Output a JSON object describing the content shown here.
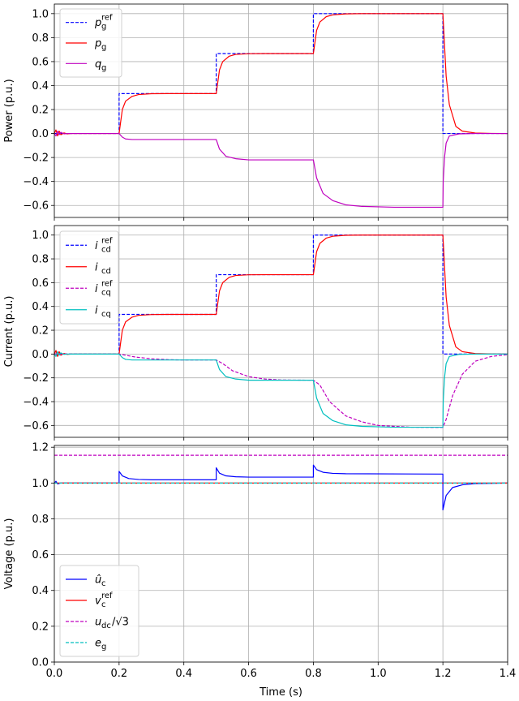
{
  "chart_data": [
    {
      "type": "line",
      "ylabel": "Power (p.u.)",
      "xlim": [
        0,
        1.4
      ],
      "ylim": [
        -0.7,
        1.08
      ],
      "x_ticks": [
        "0.0",
        "0.2",
        "0.4",
        "0.6",
        "0.8",
        "1.0",
        "1.2",
        "1.4"
      ],
      "y_ticks": [
        "−0.6",
        "−0.4",
        "−0.2",
        "0.0",
        "0.2",
        "0.4",
        "0.6",
        "0.8",
        "1.0"
      ],
      "y_tick_values": [
        -0.6,
        -0.4,
        -0.2,
        0.0,
        0.2,
        0.4,
        0.6,
        0.8,
        1.0
      ],
      "grid": true,
      "legend_position": "upper-left",
      "series": [
        {
          "name": "p_g^ref",
          "legend_main": "p",
          "legend_sub": "g",
          "legend_sup": "ref",
          "color": "#0000ff",
          "dash": "dashed",
          "x": [
            0,
            0.2,
            0.2,
            0.5,
            0.5,
            0.8,
            0.8,
            1.2,
            1.2,
            1.4
          ],
          "y": [
            0,
            0,
            0.333,
            0.333,
            0.667,
            0.667,
            1.0,
            1.0,
            0,
            0
          ]
        },
        {
          "name": "p_g",
          "legend_main": "p",
          "legend_sub": "g",
          "legend_sup": "",
          "color": "#ff0000",
          "dash": "solid",
          "x": [
            0,
            0.005,
            0.01,
            0.015,
            0.02,
            0.03,
            0.04,
            0.05,
            0.2,
            0.21,
            0.22,
            0.24,
            0.26,
            0.3,
            0.35,
            0.5,
            0.51,
            0.52,
            0.54,
            0.56,
            0.6,
            0.65,
            0.8,
            0.81,
            0.82,
            0.84,
            0.86,
            0.9,
            0.95,
            1.2,
            1.21,
            1.22,
            1.24,
            1.26,
            1.3,
            1.35,
            1.4
          ],
          "y": [
            0,
            0.03,
            -0.02,
            0.02,
            -0.01,
            0.005,
            -0.003,
            0,
            0,
            0.2,
            0.27,
            0.31,
            0.325,
            0.332,
            0.333,
            0.333,
            0.53,
            0.6,
            0.645,
            0.66,
            0.666,
            0.667,
            0.667,
            0.86,
            0.93,
            0.975,
            0.99,
            0.998,
            1.0,
            1.0,
            0.48,
            0.24,
            0.06,
            0.02,
            0.004,
            0.001,
            0
          ]
        },
        {
          "name": "q_g",
          "legend_main": "q",
          "legend_sub": "g",
          "legend_sup": "",
          "color": "#bf00bf",
          "dash": "solid",
          "x": [
            0,
            0.005,
            0.01,
            0.015,
            0.02,
            0.03,
            0.04,
            0.2,
            0.21,
            0.22,
            0.24,
            0.3,
            0.5,
            0.51,
            0.53,
            0.56,
            0.6,
            0.65,
            0.8,
            0.81,
            0.83,
            0.86,
            0.9,
            0.95,
            1.05,
            1.2,
            1.201,
            1.205,
            1.21,
            1.22,
            1.25,
            1.3,
            1.4
          ],
          "y": [
            0,
            -0.02,
            0.02,
            -0.01,
            0.01,
            -0.003,
            0,
            0,
            -0.03,
            -0.045,
            -0.05,
            -0.05,
            -0.05,
            -0.13,
            -0.19,
            -0.21,
            -0.22,
            -0.22,
            -0.22,
            -0.37,
            -0.5,
            -0.56,
            -0.595,
            -0.608,
            -0.615,
            -0.615,
            -0.4,
            -0.2,
            -0.08,
            -0.02,
            -0.003,
            0,
            0
          ]
        }
      ]
    },
    {
      "type": "line",
      "ylabel": "Current (p.u.)",
      "xlim": [
        0,
        1.4
      ],
      "ylim": [
        -0.7,
        1.08
      ],
      "x_ticks": [
        "0.0",
        "0.2",
        "0.4",
        "0.6",
        "0.8",
        "1.0",
        "1.2",
        "1.4"
      ],
      "y_ticks": [
        "−0.6",
        "−0.4",
        "−0.2",
        "0.0",
        "0.2",
        "0.4",
        "0.6",
        "0.8",
        "1.0"
      ],
      "y_tick_values": [
        -0.6,
        -0.4,
        -0.2,
        0.0,
        0.2,
        0.4,
        0.6,
        0.8,
        1.0
      ],
      "grid": true,
      "legend_position": "upper-left",
      "series": [
        {
          "name": "i_cd^ref",
          "legend_main": "i",
          "legend_sub": "cd",
          "legend_sup": "ref",
          "color": "#0000ff",
          "dash": "dashed",
          "x": [
            0,
            0.2,
            0.2,
            0.5,
            0.5,
            0.8,
            0.8,
            1.2,
            1.2,
            1.4
          ],
          "y": [
            0,
            0,
            0.333,
            0.333,
            0.667,
            0.667,
            1.0,
            1.0,
            0,
            0
          ]
        },
        {
          "name": "i_cd",
          "legend_main": "i",
          "legend_sub": "cd",
          "legend_sup": "",
          "color": "#ff0000",
          "dash": "solid",
          "x": [
            0,
            0.005,
            0.01,
            0.015,
            0.02,
            0.03,
            0.04,
            0.05,
            0.2,
            0.21,
            0.22,
            0.24,
            0.26,
            0.3,
            0.35,
            0.5,
            0.51,
            0.52,
            0.54,
            0.56,
            0.6,
            0.65,
            0.8,
            0.81,
            0.82,
            0.84,
            0.86,
            0.9,
            0.95,
            1.2,
            1.21,
            1.22,
            1.24,
            1.26,
            1.3,
            1.35,
            1.4
          ],
          "y": [
            0,
            0.03,
            -0.02,
            0.02,
            -0.01,
            0.005,
            -0.003,
            0,
            0,
            0.2,
            0.27,
            0.31,
            0.325,
            0.332,
            0.333,
            0.333,
            0.53,
            0.6,
            0.645,
            0.66,
            0.666,
            0.667,
            0.667,
            0.86,
            0.93,
            0.975,
            0.99,
            0.998,
            1.0,
            1.0,
            0.48,
            0.24,
            0.06,
            0.02,
            0.004,
            0.001,
            0
          ]
        },
        {
          "name": "i_cq^ref",
          "legend_main": "i",
          "legend_sub": "cq",
          "legend_sup": "ref",
          "color": "#bf00bf",
          "dash": "dashed",
          "x": [
            0,
            0.2,
            0.22,
            0.25,
            0.3,
            0.35,
            0.4,
            0.5,
            0.52,
            0.55,
            0.6,
            0.65,
            0.7,
            0.8,
            0.82,
            0.85,
            0.9,
            0.95,
            1.0,
            1.1,
            1.2,
            1.21,
            1.23,
            1.26,
            1.3,
            1.35,
            1.4
          ],
          "y": [
            0,
            0,
            -0.01,
            -0.025,
            -0.04,
            -0.047,
            -0.05,
            -0.05,
            -0.08,
            -0.14,
            -0.19,
            -0.21,
            -0.218,
            -0.22,
            -0.26,
            -0.4,
            -0.52,
            -0.57,
            -0.6,
            -0.615,
            -0.617,
            -0.55,
            -0.35,
            -0.17,
            -0.06,
            -0.02,
            -0.005
          ]
        },
        {
          "name": "i_cq",
          "legend_main": "i",
          "legend_sub": "cq",
          "legend_sup": "",
          "color": "#00bfbf",
          "dash": "solid",
          "x": [
            0,
            0.005,
            0.01,
            0.015,
            0.02,
            0.03,
            0.04,
            0.2,
            0.21,
            0.22,
            0.24,
            0.3,
            0.5,
            0.51,
            0.53,
            0.56,
            0.6,
            0.65,
            0.8,
            0.81,
            0.83,
            0.86,
            0.9,
            0.95,
            1.05,
            1.2,
            1.201,
            1.205,
            1.21,
            1.22,
            1.25,
            1.3,
            1.4
          ],
          "y": [
            0,
            -0.02,
            0.02,
            -0.01,
            0.01,
            -0.003,
            0,
            0,
            -0.03,
            -0.045,
            -0.05,
            -0.05,
            -0.05,
            -0.13,
            -0.19,
            -0.21,
            -0.22,
            -0.22,
            -0.22,
            -0.37,
            -0.5,
            -0.56,
            -0.595,
            -0.608,
            -0.615,
            -0.615,
            -0.4,
            -0.2,
            -0.08,
            -0.02,
            -0.003,
            0,
            0
          ]
        }
      ]
    },
    {
      "type": "line",
      "xlabel": "Time (s)",
      "ylabel": "Voltage (p.u.)",
      "xlim": [
        0,
        1.4
      ],
      "ylim": [
        0,
        1.21
      ],
      "x_ticks": [
        "0.0",
        "0.2",
        "0.4",
        "0.6",
        "0.8",
        "1.0",
        "1.2",
        "1.4"
      ],
      "y_ticks": [
        "0.0",
        "0.2",
        "0.4",
        "0.6",
        "0.8",
        "1.0",
        "1.2"
      ],
      "y_tick_values": [
        0.0,
        0.2,
        0.4,
        0.6,
        0.8,
        1.0,
        1.2
      ],
      "grid": true,
      "legend_position": "lower-left",
      "series": [
        {
          "name": "û_c",
          "legend_main": "û",
          "legend_sub": "c",
          "legend_sup": "",
          "color": "#0000ff",
          "dash": "solid",
          "x": [
            0,
            0.005,
            0.01,
            0.02,
            0.2,
            0.2,
            0.21,
            0.23,
            0.26,
            0.3,
            0.5,
            0.5,
            0.51,
            0.53,
            0.56,
            0.6,
            0.8,
            0.8,
            0.81,
            0.83,
            0.86,
            0.9,
            1.2,
            1.2,
            1.21,
            1.23,
            1.26,
            1.3,
            1.4
          ],
          "y": [
            1.0,
            1.01,
            0.995,
            1.0,
            1.0,
            1.065,
            1.04,
            1.025,
            1.02,
            1.018,
            1.018,
            1.085,
            1.055,
            1.04,
            1.035,
            1.033,
            1.033,
            1.1,
            1.075,
            1.06,
            1.054,
            1.052,
            1.05,
            0.85,
            0.93,
            0.975,
            0.99,
            0.997,
            1.0
          ]
        },
        {
          "name": "v_c^ref",
          "legend_main": "v",
          "legend_sub": "c",
          "legend_sup": "ref",
          "color": "#ff0000",
          "dash": "solid",
          "x": [
            0,
            1.4
          ],
          "y": [
            1.0,
            1.0
          ]
        },
        {
          "name": "u_dc/√3",
          "legend_main": "u",
          "legend_sub": "dc",
          "legend_sup": "",
          "legend_tail": "/√3",
          "color": "#bf00bf",
          "dash": "dashed",
          "x": [
            0,
            1.4
          ],
          "y": [
            1.155,
            1.155
          ]
        },
        {
          "name": "e_g",
          "legend_main": "e",
          "legend_sub": "g",
          "legend_sup": "",
          "color": "#00bfbf",
          "dash": "dashed",
          "x": [
            0,
            1.4
          ],
          "y": [
            1.0,
            1.0
          ]
        }
      ]
    }
  ]
}
